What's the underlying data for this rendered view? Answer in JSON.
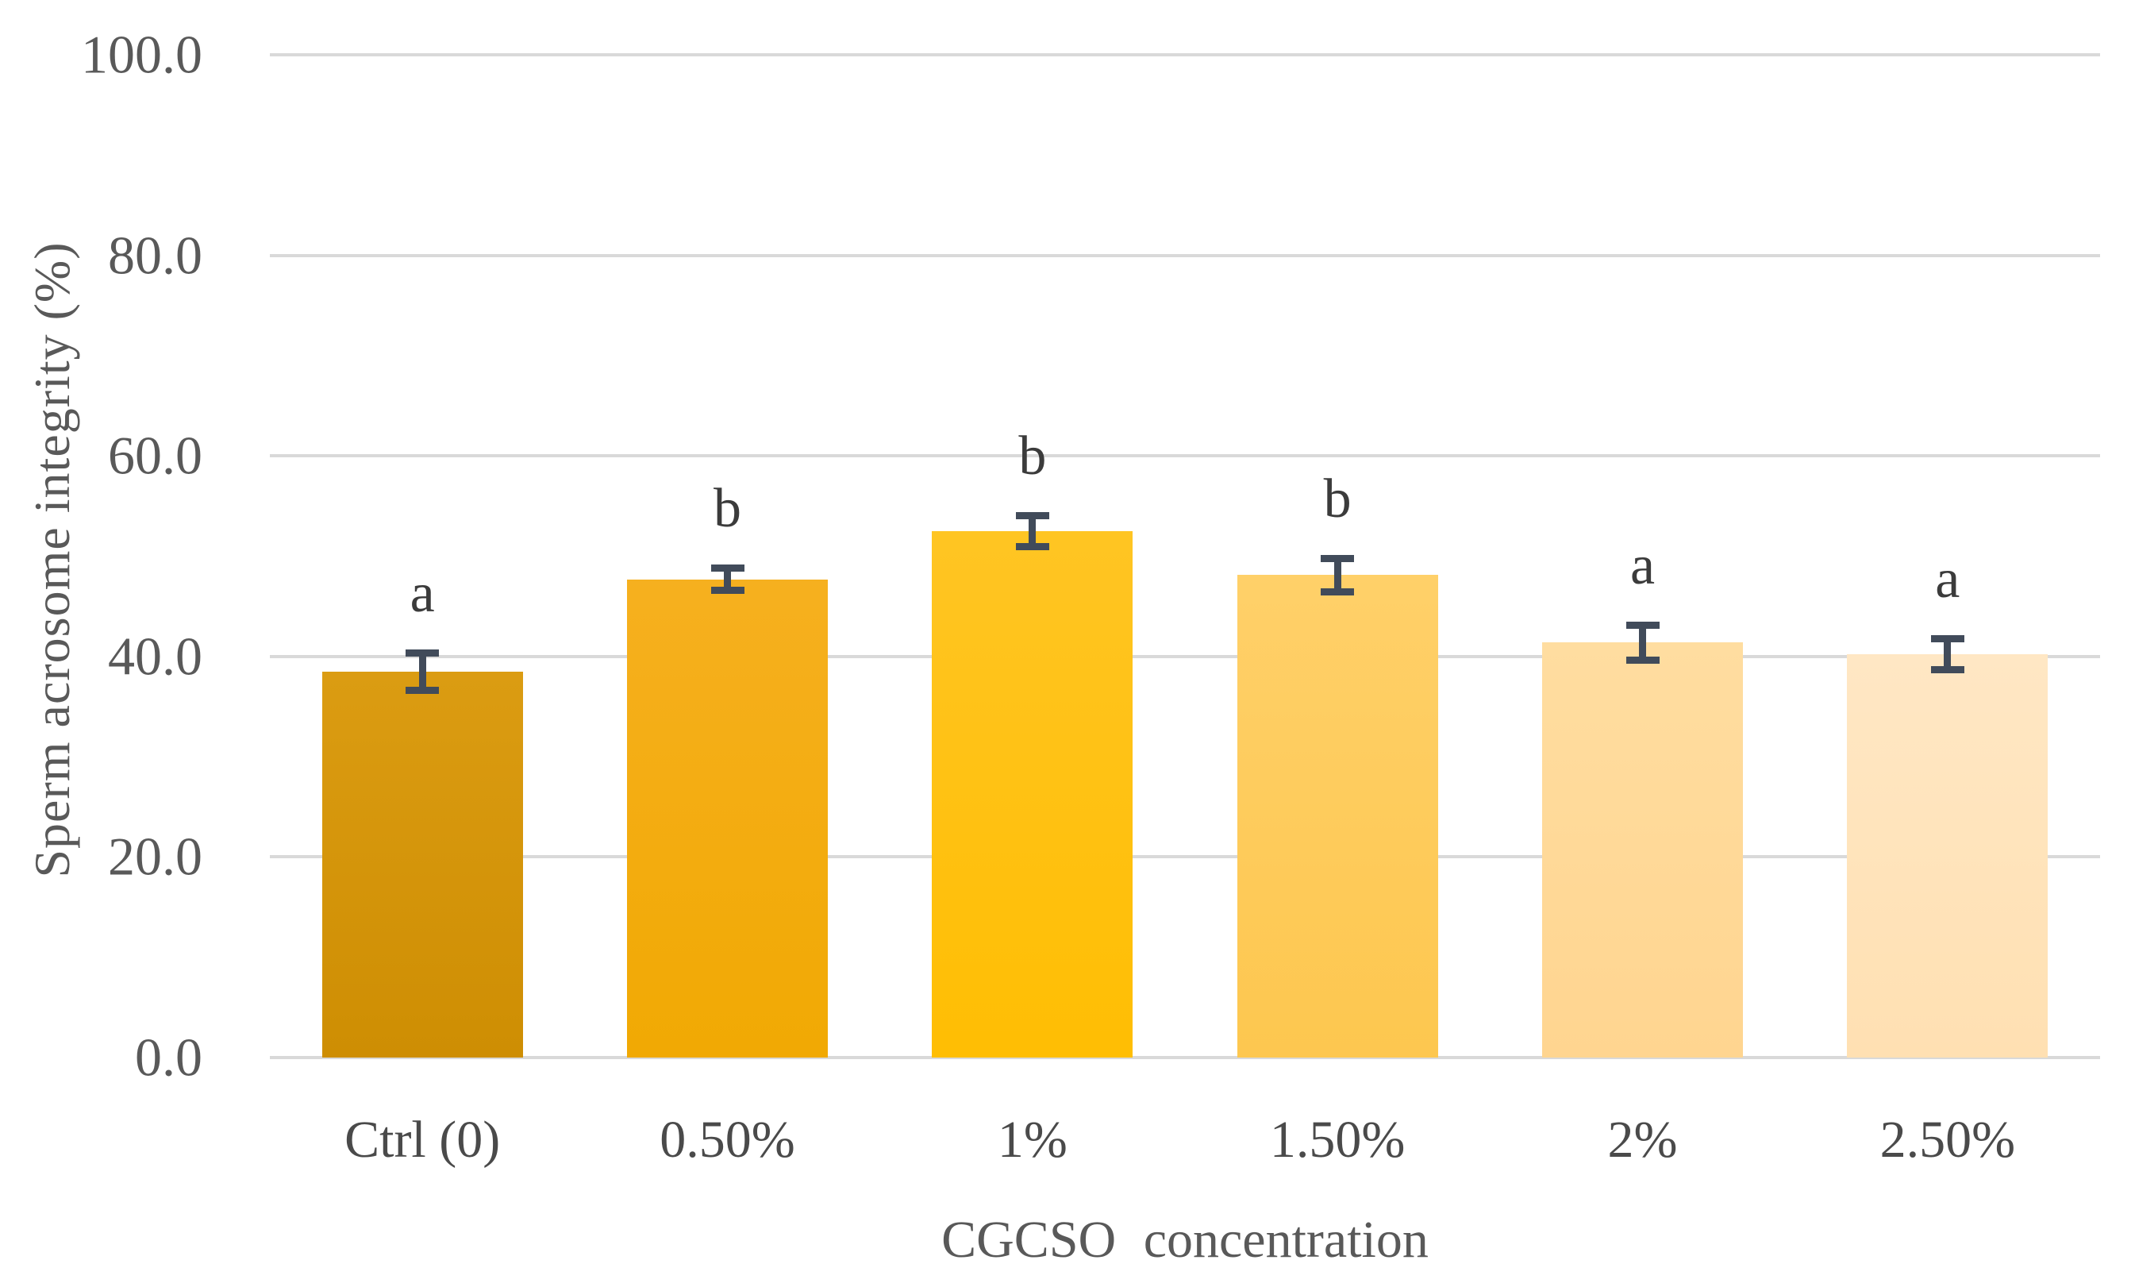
{
  "chart_data": {
    "type": "bar",
    "title": "",
    "xlabel": "CGCSO concentration",
    "ylabel": "Sperm acrosome integrity (%)",
    "categories": [
      "Ctrl (0)",
      "0.50%",
      "1%",
      "1.50%",
      "2%",
      "2.50%"
    ],
    "series": [
      {
        "name": "Sperm acrosome integrity",
        "values": [
          38.5,
          47.7,
          52.5,
          48.1,
          41.4,
          40.2
        ],
        "error_bars": [
          2.2,
          1.5,
          1.9,
          2.0,
          2.1,
          1.9
        ],
        "significance_letters": [
          "a",
          "b",
          "b",
          "b",
          "a",
          "a"
        ]
      }
    ],
    "ylim": [
      0,
      100
    ],
    "ytick_values": [
      0,
      20,
      40,
      60,
      80,
      100
    ],
    "ytick_labels": [
      "0.0",
      "20.0",
      "40.0",
      "60.0",
      "80.0",
      "100.0"
    ],
    "grid": "horizontal gridlines only",
    "legend": "none",
    "colors": {
      "bar_gradients_top_to_bottom": [
        [
          "#db9c12",
          "#ce8e03"
        ],
        [
          "#f6b01f",
          "#f1a903"
        ],
        [
          "#ffc523",
          "#ffbe03"
        ],
        [
          "#ffd069",
          "#fdc74f"
        ],
        [
          "#ffdda0",
          "#ffd590"
        ],
        [
          "#ffe7c4",
          "#ffe0b2"
        ]
      ],
      "error_bar": "#414b5a",
      "gridline": "#d9d9d9",
      "axis_text": "#595959",
      "letter_text": "#3b3b3b"
    }
  }
}
